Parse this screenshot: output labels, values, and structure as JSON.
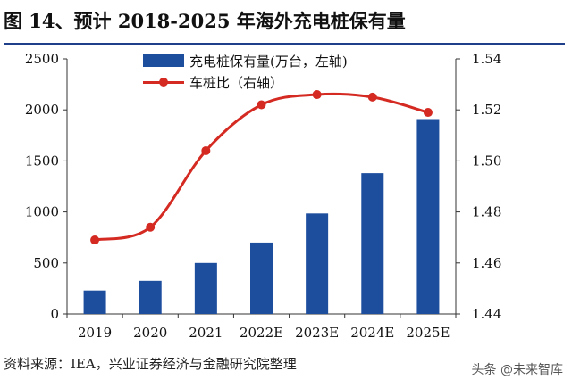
{
  "figure": {
    "title": "图 14、预计 2018-2025 年海外充电桩保有量",
    "source": "资料来源：IEA，兴业证券经济与金融研究院整理",
    "watermark": "头条 @未来智库"
  },
  "chart_data": {
    "type": "bar+line",
    "categories": [
      "2019",
      "2020",
      "2021",
      "2022E",
      "2023E",
      "2024E",
      "2025E"
    ],
    "series": [
      {
        "name": "充电桩保有量(万台，左轴)",
        "type": "bar",
        "axis": "left",
        "color": "#1d4e9e",
        "values": [
          230,
          325,
          500,
          700,
          985,
          1380,
          1910
        ]
      },
      {
        "name": "车桩比（右轴）",
        "type": "line",
        "axis": "right",
        "color": "#d42a22",
        "values": [
          1.469,
          1.474,
          1.504,
          1.522,
          1.526,
          1.525,
          1.519
        ]
      }
    ],
    "y_left": {
      "min": 0,
      "max": 2500,
      "ticks": [
        0,
        500,
        1000,
        1500,
        2000,
        2500
      ]
    },
    "y_right": {
      "min": 1.44,
      "max": 1.54,
      "ticks": [
        "1.44",
        "1.46",
        "1.48",
        "1.50",
        "1.52",
        "1.54"
      ]
    },
    "grid": false,
    "legend_position": "top-left"
  }
}
